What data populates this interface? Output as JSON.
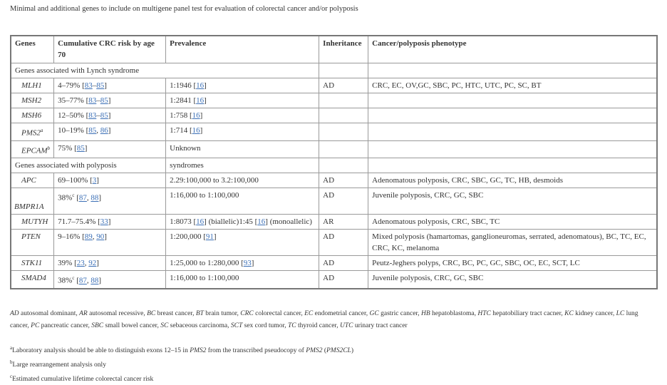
{
  "title": "Minimal and additional genes to include on multigene panel test for evaluation of colorectal cancer and/or polyposis",
  "headers": [
    "Genes",
    "Cumulative CRC risk by age 70",
    "Prevalence",
    "Inheritance",
    "Cancer/polyposis phenotype"
  ],
  "sections": [
    {
      "label": "Genes associated with Lynch syndrome",
      "label2": ""
    },
    {
      "label": "Genes associated with polyposis",
      "label2": "syndromes"
    }
  ],
  "rows": [
    {
      "section": 0,
      "gene": "MLH1",
      "sup": "",
      "risk": [
        {
          "t": "4–79% ["
        },
        {
          "t": "83",
          "link": true
        },
        {
          "t": "–"
        },
        {
          "t": "85",
          "link": true
        },
        {
          "t": "]"
        }
      ],
      "prev": [
        {
          "t": "1:1946 ["
        },
        {
          "t": "16",
          "link": true
        },
        {
          "t": "]"
        }
      ],
      "inh": "AD",
      "pheno": "CRC, EC, OV,GC, SBC, PC, HTC, UTC, PC, SC, BT"
    },
    {
      "section": 0,
      "gene": "MSH2",
      "sup": "",
      "risk": [
        {
          "t": "35–77% ["
        },
        {
          "t": "83",
          "link": true
        },
        {
          "t": "–"
        },
        {
          "t": "85",
          "link": true
        },
        {
          "t": "]"
        }
      ],
      "prev": [
        {
          "t": "1:2841 ["
        },
        {
          "t": "16",
          "link": true
        },
        {
          "t": "]"
        }
      ],
      "inh": "",
      "pheno": ""
    },
    {
      "section": 0,
      "gene": "MSH6",
      "sup": "",
      "risk": [
        {
          "t": "12–50% ["
        },
        {
          "t": "83",
          "link": true
        },
        {
          "t": "–"
        },
        {
          "t": "85",
          "link": true
        },
        {
          "t": "]"
        }
      ],
      "prev": [
        {
          "t": "1:758 ["
        },
        {
          "t": "16",
          "link": true
        },
        {
          "t": "]"
        }
      ],
      "inh": "",
      "pheno": ""
    },
    {
      "section": 0,
      "gene": "PMS2",
      "sup": "a",
      "risk": [
        {
          "t": "10–19% ["
        },
        {
          "t": "85",
          "link": true
        },
        {
          "t": ", "
        },
        {
          "t": "86",
          "link": true
        },
        {
          "t": "]"
        }
      ],
      "prev": [
        {
          "t": "1:714 ["
        },
        {
          "t": "16",
          "link": true
        },
        {
          "t": "]"
        }
      ],
      "inh": "",
      "pheno": ""
    },
    {
      "section": 0,
      "gene": "EPCAM",
      "sup": "b",
      "risk": [
        {
          "t": "75% ["
        },
        {
          "t": "85",
          "link": true
        },
        {
          "t": "]"
        }
      ],
      "prev": [
        {
          "t": "Unknown"
        }
      ],
      "inh": "",
      "pheno": ""
    },
    {
      "section": 1,
      "gene": "APC",
      "sup": "",
      "risk": [
        {
          "t": "69–100% ["
        },
        {
          "t": "3",
          "link": true
        },
        {
          "t": "]"
        }
      ],
      "prev": [
        {
          "t": "2.29:100,000 to 3.2:100,000"
        }
      ],
      "inh": "AD",
      "pheno": "Adenomatous polyposis, CRC, SBC, GC, TC, HB, desmoids"
    },
    {
      "section": 1,
      "gene": "BMPR1A",
      "sup": "",
      "low": true,
      "risk": [
        {
          "t": "38%"
        },
        {
          "t": "c",
          "sup": true
        },
        {
          "t": " ["
        },
        {
          "t": "87",
          "link": true
        },
        {
          "t": ", "
        },
        {
          "t": "88",
          "link": true
        },
        {
          "t": "]"
        }
      ],
      "prev": [
        {
          "t": "1:16,000 to 1:100,000"
        }
      ],
      "inh": "AD",
      "pheno": "Juvenile polyposis, CRC, GC, SBC",
      "tall": true
    },
    {
      "section": 1,
      "gene": "MUTYH",
      "sup": "",
      "risk": [
        {
          "t": "71.7–75.4% ["
        },
        {
          "t": "33",
          "link": true
        },
        {
          "t": "]"
        }
      ],
      "prev": [
        {
          "t": "1:8073 ["
        },
        {
          "t": "16",
          "link": true
        },
        {
          "t": "] (biallelic)1:45 ["
        },
        {
          "t": "16",
          "link": true
        },
        {
          "t": "] (monoallelic)"
        }
      ],
      "inh": "AR",
      "pheno": "Adenomatous polyposis, CRC, SBC, TC"
    },
    {
      "section": 1,
      "gene": "PTEN",
      "sup": "",
      "risk": [
        {
          "t": "9–16% ["
        },
        {
          "t": "89",
          "link": true
        },
        {
          "t": ", "
        },
        {
          "t": "90",
          "link": true
        },
        {
          "t": "]"
        }
      ],
      "prev": [
        {
          "t": "1:200,000 ["
        },
        {
          "t": "91",
          "link": true
        },
        {
          "t": "]"
        }
      ],
      "inh": "AD",
      "pheno": "Mixed polyposis (hamartomas, ganglioneuromas, serrated, adenomatous), BC, TC, EC, CRC, KC, melanoma"
    },
    {
      "section": 1,
      "gene": "STK11",
      "sup": "",
      "risk": [
        {
          "t": "39% ["
        },
        {
          "t": "23",
          "link": true
        },
        {
          "t": ", "
        },
        {
          "t": "92",
          "link": true
        },
        {
          "t": "]"
        }
      ],
      "prev": [
        {
          "t": "1:25,000 to 1:280,000 ["
        },
        {
          "t": "93",
          "link": true
        },
        {
          "t": "]"
        }
      ],
      "inh": "AD",
      "pheno": "Peutz-Jeghers polyps, CRC, BC, PC, GC, SBC, OC, EC, SCT, LC"
    },
    {
      "section": 1,
      "gene": "SMAD4",
      "sup": "",
      "risk": [
        {
          "t": "38%"
        },
        {
          "t": "c",
          "sup": true
        },
        {
          "t": " ["
        },
        {
          "t": "87",
          "link": true
        },
        {
          "t": ", "
        },
        {
          "t": "88",
          "link": true
        },
        {
          "t": "]"
        }
      ],
      "prev": [
        {
          "t": "1:16,000 to 1:100,000"
        }
      ],
      "inh": "AD",
      "pheno": "Juvenile polyposis, CRC, GC, SBC"
    }
  ],
  "abbreviations": [
    [
      "AD",
      "autosomal dominant"
    ],
    [
      "AR",
      "autosomal recessive"
    ],
    [
      "BC",
      "breast cancer"
    ],
    [
      "BT",
      "brain tumor"
    ],
    [
      "CRC",
      "colorectal cancer"
    ],
    [
      "EC",
      "endometrial cancer"
    ],
    [
      "GC",
      "gastric cancer"
    ],
    [
      "HB",
      "hepatoblastoma"
    ],
    [
      "HTC",
      "hepatobiliary tract cacner"
    ],
    [
      "KC",
      "kidney cancer"
    ],
    [
      "LC",
      "lung cancer"
    ],
    [
      "PC",
      "pancreatic cancer"
    ],
    [
      "SBC",
      "small bowel cancer"
    ],
    [
      "SC",
      "sebaceous carcinoma"
    ],
    [
      "SCT",
      "sex cord tumor"
    ],
    [
      "TC",
      "thyroid cancer"
    ],
    [
      "UTC",
      "urinary tract cancer"
    ]
  ],
  "footnotes": [
    {
      "mark": "a",
      "parts": [
        {
          "t": "Laboratory analysis should be able to distinguish exons 12–15 in "
        },
        {
          "t": "PMS2",
          "i": true
        },
        {
          "t": " from the transcribed pseudocopy of "
        },
        {
          "t": "PMS2",
          "i": true
        },
        {
          "t": " ("
        },
        {
          "t": "PMS2CL",
          "i": true
        },
        {
          "t": ")"
        }
      ]
    },
    {
      "mark": "b",
      "parts": [
        {
          "t": "Large rearrangement analysis only"
        }
      ]
    },
    {
      "mark": "c",
      "parts": [
        {
          "t": "Estimated cumulative lifetime colorectal cancer risk"
        }
      ]
    }
  ],
  "colors": {
    "link": "#3b6fb6",
    "border": "#9a9a9a",
    "text": "#333333"
  }
}
